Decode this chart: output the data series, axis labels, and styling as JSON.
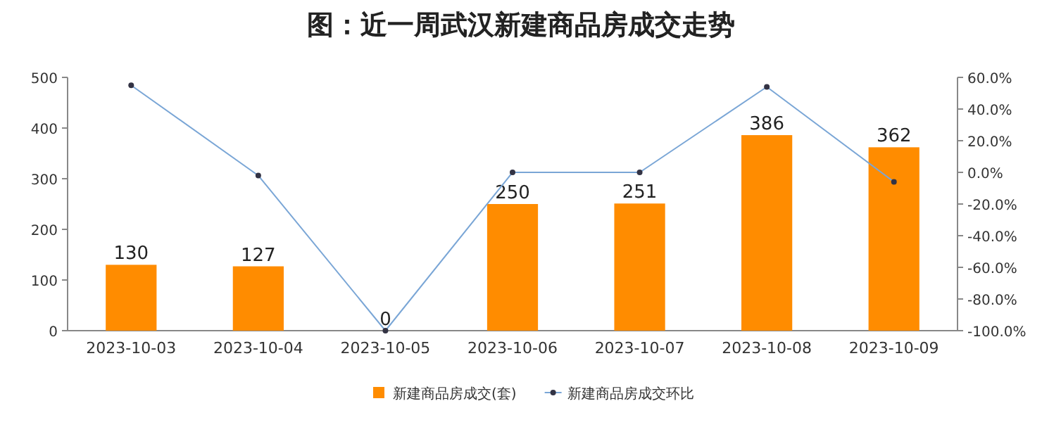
{
  "chart_data": {
    "type": "bar",
    "title": "图：近一周武汉新建商品房成交走势",
    "categories": [
      "2023-10-03",
      "2023-10-04",
      "2023-10-05",
      "2023-10-06",
      "2023-10-07",
      "2023-10-08",
      "2023-10-09"
    ],
    "series": [
      {
        "name": "新建商品房成交(套)",
        "color": "#ff8c00",
        "values": [
          130,
          127,
          0,
          250,
          251,
          386,
          362
        ],
        "value_labels": [
          "130",
          "127",
          "0",
          "250",
          "251",
          "386",
          "362"
        ]
      },
      {
        "name": "新建商品房成交环比",
        "type": "line",
        "axis": "y2",
        "color": "#7aa6d6",
        "marker": "circle",
        "values": [
          55,
          -2,
          -100,
          0,
          0,
          54,
          -6
        ]
      }
    ],
    "ylim": [
      0,
      500
    ],
    "yticks": [
      0,
      100,
      200,
      300,
      400,
      500
    ],
    "y2lim": [
      -100,
      60
    ],
    "y2ticks": [
      {
        "value": -100,
        "label": "-100.0%"
      },
      {
        "value": -80,
        "label": "-80.0%"
      },
      {
        "value": -60,
        "label": "-60.0%"
      },
      {
        "value": -40,
        "label": "-40.0%"
      },
      {
        "value": -20,
        "label": "-20.0%"
      },
      {
        "value": 0,
        "label": "0.0%"
      },
      {
        "value": 20,
        "label": "20.0%"
      },
      {
        "value": 40,
        "label": "40.0%"
      },
      {
        "value": 60,
        "label": "60.0%"
      }
    ],
    "legend": "bottom"
  }
}
